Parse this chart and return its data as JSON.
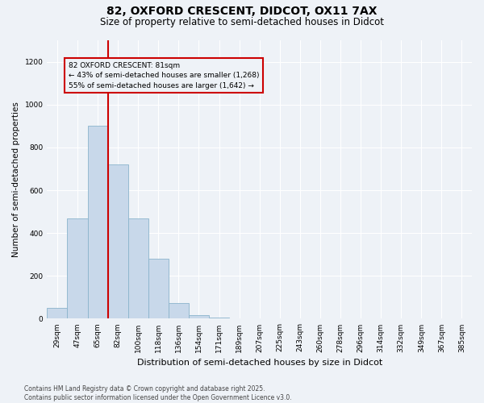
{
  "title_line1": "82, OXFORD CRESCENT, DIDCOT, OX11 7AX",
  "title_line2": "Size of property relative to semi-detached houses in Didcot",
  "xlabel": "Distribution of semi-detached houses by size in Didcot",
  "ylabel": "Number of semi-detached properties",
  "footnote": "Contains HM Land Registry data © Crown copyright and database right 2025.\nContains public sector information licensed under the Open Government Licence v3.0.",
  "categories": [
    "29sqm",
    "47sqm",
    "65sqm",
    "82sqm",
    "100sqm",
    "118sqm",
    "136sqm",
    "154sqm",
    "171sqm",
    "189sqm",
    "207sqm",
    "225sqm",
    "243sqm",
    "260sqm",
    "278sqm",
    "296sqm",
    "314sqm",
    "332sqm",
    "349sqm",
    "367sqm",
    "385sqm"
  ],
  "values": [
    50,
    470,
    900,
    720,
    470,
    280,
    75,
    15,
    5,
    0,
    0,
    0,
    0,
    0,
    0,
    0,
    0,
    0,
    0,
    0,
    0
  ],
  "bar_color": "#c8d8ea",
  "bar_edge_color": "#8ab4cc",
  "property_line_color": "#cc0000",
  "annotation_text": "82 OXFORD CRESCENT: 81sqm\n← 43% of semi-detached houses are smaller (1,268)\n55% of semi-detached houses are larger (1,642) →",
  "annotation_box_color": "#cc0000",
  "ylim": [
    0,
    1300
  ],
  "yticks": [
    0,
    200,
    400,
    600,
    800,
    1000,
    1200
  ],
  "background_color": "#eef2f7",
  "grid_color": "#ffffff",
  "title_fontsize": 10,
  "subtitle_fontsize": 8.5,
  "tick_fontsize": 6.5,
  "ylabel_fontsize": 7.5,
  "xlabel_fontsize": 8,
  "footnote_fontsize": 5.5
}
